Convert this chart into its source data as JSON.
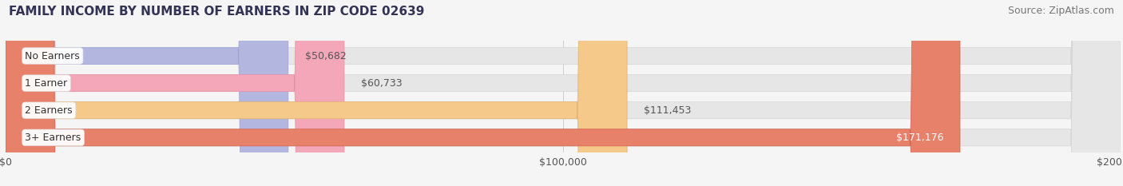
{
  "title": "FAMILY INCOME BY NUMBER OF EARNERS IN ZIP CODE 02639",
  "source": "Source: ZipAtlas.com",
  "categories": [
    "No Earners",
    "1 Earner",
    "2 Earners",
    "3+ Earners"
  ],
  "values": [
    50682,
    60733,
    111453,
    171176
  ],
  "labels": [
    "$50,682",
    "$60,733",
    "$111,453",
    "$171,176"
  ],
  "bar_colors": [
    "#b3b7e0",
    "#f4a7b9",
    "#f5c98a",
    "#e8816a"
  ],
  "bar_edge_colors": [
    "#9fa3d0",
    "#e090a5",
    "#e0b070",
    "#d06050"
  ],
  "background_color": "#f5f5f5",
  "bar_bg_color": "#e8e8e8",
  "xlim": [
    0,
    200000
  ],
  "xticks": [
    0,
    100000,
    200000
  ],
  "xticklabels": [
    "$0",
    "$100,000",
    "$200,000"
  ],
  "title_fontsize": 11,
  "source_fontsize": 9,
  "label_fontsize": 9,
  "tick_fontsize": 9,
  "bar_height": 0.62,
  "fig_width": 14.06,
  "fig_height": 2.33
}
